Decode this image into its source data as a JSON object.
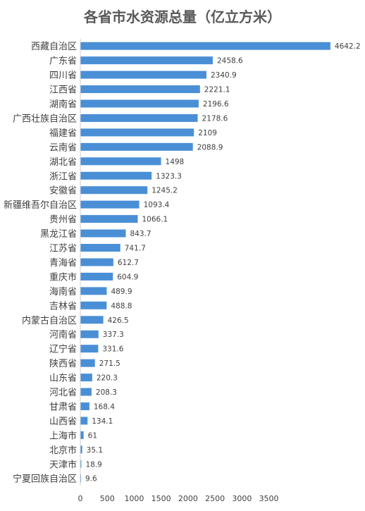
{
  "chart_data": {
    "type": "bar",
    "orientation": "horizontal",
    "title": "各省市水资源总量（亿立方米）",
    "xlabel": "",
    "ylabel": "",
    "xlim": [
      0,
      4500
    ],
    "x_ticks": [
      "0",
      "500",
      "1000",
      "1500",
      "2000",
      "2500",
      "3000",
      "3500"
    ],
    "grid": false,
    "bar_color": "#4a8fd6",
    "categories": [
      "西藏自治区",
      "广东省",
      "四川省",
      "江西省",
      "湖南省",
      "广西壮族自治区",
      "福建省",
      "云南省",
      "湖北省",
      "浙江省",
      "安徽省",
      "新疆维吾尔自治区",
      "贵州省",
      "黑龙江省",
      "江苏省",
      "青海省",
      "重庆市",
      "海南省",
      "吉林省",
      "内蒙古自治区",
      "河南省",
      "辽宁省",
      "陕西省",
      "山东省",
      "河北省",
      "甘肃省",
      "山西省",
      "上海市",
      "北京市",
      "天津市",
      "宁夏回族自治区"
    ],
    "values": [
      4642.2,
      2458.6,
      2340.9,
      2221.1,
      2196.6,
      2178.6,
      2109,
      2088.9,
      1498,
      1323.3,
      1245.2,
      1093.4,
      1066.1,
      843.7,
      741.7,
      612.7,
      604.9,
      489.9,
      488.8,
      426.5,
      337.3,
      331.6,
      271.5,
      220.3,
      208.3,
      168.4,
      134.1,
      61,
      35.1,
      18.9,
      9.6
    ],
    "value_labels": [
      "4642.2",
      "2458.6",
      "2340.9",
      "2221.1",
      "2196.6",
      "2178.6",
      "2109",
      "2088.9",
      "1498",
      "1323.3",
      "1245.2",
      "1093.4",
      "1066.1",
      "843.7",
      "741.7",
      "612.7",
      "604.9",
      "489.9",
      "488.8",
      "426.5",
      "337.3",
      "331.6",
      "271.5",
      "220.3",
      "208.3",
      "168.4",
      "134.1",
      "61",
      "35.1",
      "18.9",
      "9.6"
    ]
  }
}
